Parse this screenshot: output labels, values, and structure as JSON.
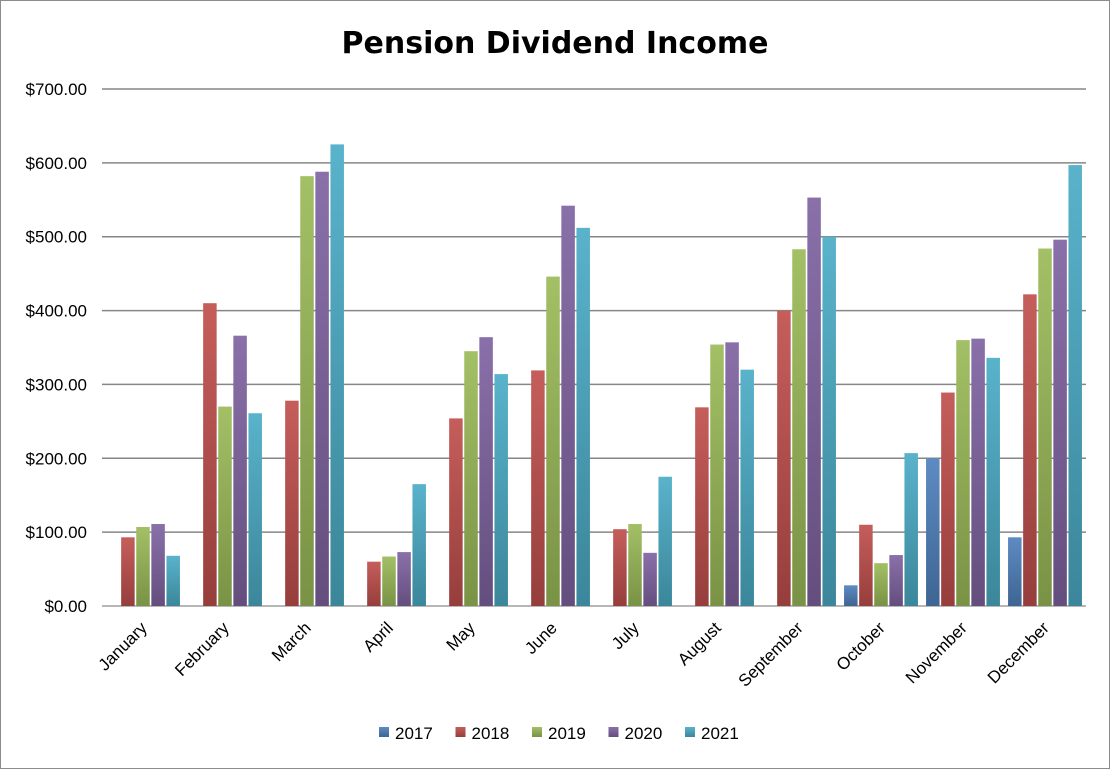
{
  "chart_data": {
    "type": "bar",
    "title": "Pension Dividend Income",
    "xlabel": "",
    "ylabel": "",
    "ylim": [
      0,
      700
    ],
    "yticks": [
      "$0.00",
      "$100.00",
      "$200.00",
      "$300.00",
      "$400.00",
      "$500.00",
      "$600.00",
      "$700.00"
    ],
    "grid": true,
    "legend_position": "bottom",
    "categories": [
      "January",
      "February",
      "March",
      "April",
      "May",
      "June",
      "July",
      "August",
      "September",
      "October",
      "November",
      "December"
    ],
    "series": [
      {
        "name": "2017",
        "color": "#4f81bd",
        "values": [
          0,
          0,
          0,
          0,
          0,
          0,
          0,
          0,
          0,
          28,
          200,
          93
        ]
      },
      {
        "name": "2018",
        "color": "#c0504d",
        "values": [
          93,
          410,
          278,
          60,
          254,
          319,
          104,
          269,
          400,
          110,
          289,
          422
        ]
      },
      {
        "name": "2019",
        "color": "#9bbb59",
        "values": [
          107,
          270,
          582,
          67,
          345,
          446,
          111,
          354,
          483,
          58,
          360,
          484
        ]
      },
      {
        "name": "2020",
        "color": "#8064a2",
        "values": [
          111,
          366,
          588,
          73,
          364,
          542,
          72,
          357,
          553,
          69,
          362,
          496
        ]
      },
      {
        "name": "2021",
        "color": "#4bacc6",
        "values": [
          68,
          261,
          625,
          165,
          314,
          512,
          175,
          320,
          500,
          207,
          336,
          597
        ]
      }
    ]
  }
}
